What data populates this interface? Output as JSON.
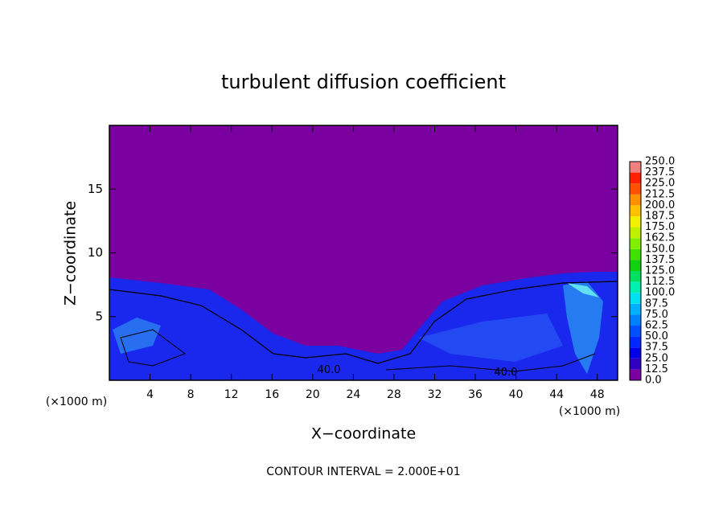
{
  "chart_data": {
    "type": "contour",
    "title": "turbulent diffusion coefficient",
    "x_label": "X−coordinate",
    "y_label": "Z−coordinate",
    "x_unit_labels": [
      "(×1000 m)",
      "(×1000 m)"
    ],
    "footer": "CONTOUR INTERVAL = 2.000E+01",
    "xlim": [
      0,
      50
    ],
    "ylim": [
      0,
      20
    ],
    "xticks": [
      4,
      8,
      12,
      16,
      20,
      24,
      28,
      32,
      36,
      40,
      44,
      48
    ],
    "yticks": [
      5,
      10,
      15
    ],
    "contour_labels": [
      {
        "value": 40,
        "label": "40.0",
        "x": 21.6,
        "y": 0.8
      },
      {
        "value": 40,
        "label": "40.0",
        "x": 39,
        "y": 0.6
      }
    ],
    "colorbar": {
      "levels": [
        {
          "value": 0,
          "label": "0.0"
        },
        {
          "value": 12.5,
          "label": "12.5"
        },
        {
          "value": 25,
          "label": "25.0"
        },
        {
          "value": 37.5,
          "label": "37.5"
        },
        {
          "value": 50,
          "label": "50.0"
        },
        {
          "value": 62.5,
          "label": "62.5"
        },
        {
          "value": 75,
          "label": "75.0"
        },
        {
          "value": 87.5,
          "label": "87.5"
        },
        {
          "value": 100,
          "label": "100.0"
        },
        {
          "value": 112.5,
          "label": "112.5"
        },
        {
          "value": 125,
          "label": "125.0"
        },
        {
          "value": 137.5,
          "label": "137.5"
        },
        {
          "value": 150,
          "label": "150.0"
        },
        {
          "value": 162.5,
          "label": "162.5"
        },
        {
          "value": 175,
          "label": "175.0"
        },
        {
          "value": 187.5,
          "label": "187.5"
        },
        {
          "value": 200,
          "label": "200.0"
        },
        {
          "value": 212.5,
          "label": "212.5"
        },
        {
          "value": 225,
          "label": "225.0"
        },
        {
          "value": 237.5,
          "label": "237.5"
        },
        {
          "value": 250,
          "label": "250.0"
        }
      ],
      "colors": [
        "#7a00a0",
        "#3000c0",
        "#0000e8",
        "#0028ff",
        "#0050ff",
        "#0080ff",
        "#00b0ff",
        "#00e0f0",
        "#00f0b0",
        "#00e060",
        "#10d010",
        "#40e000",
        "#80f000",
        "#c0f000",
        "#f0f000",
        "#ffc000",
        "#ff9000",
        "#ff5000",
        "#ff2000",
        "#f08080"
      ]
    }
  }
}
